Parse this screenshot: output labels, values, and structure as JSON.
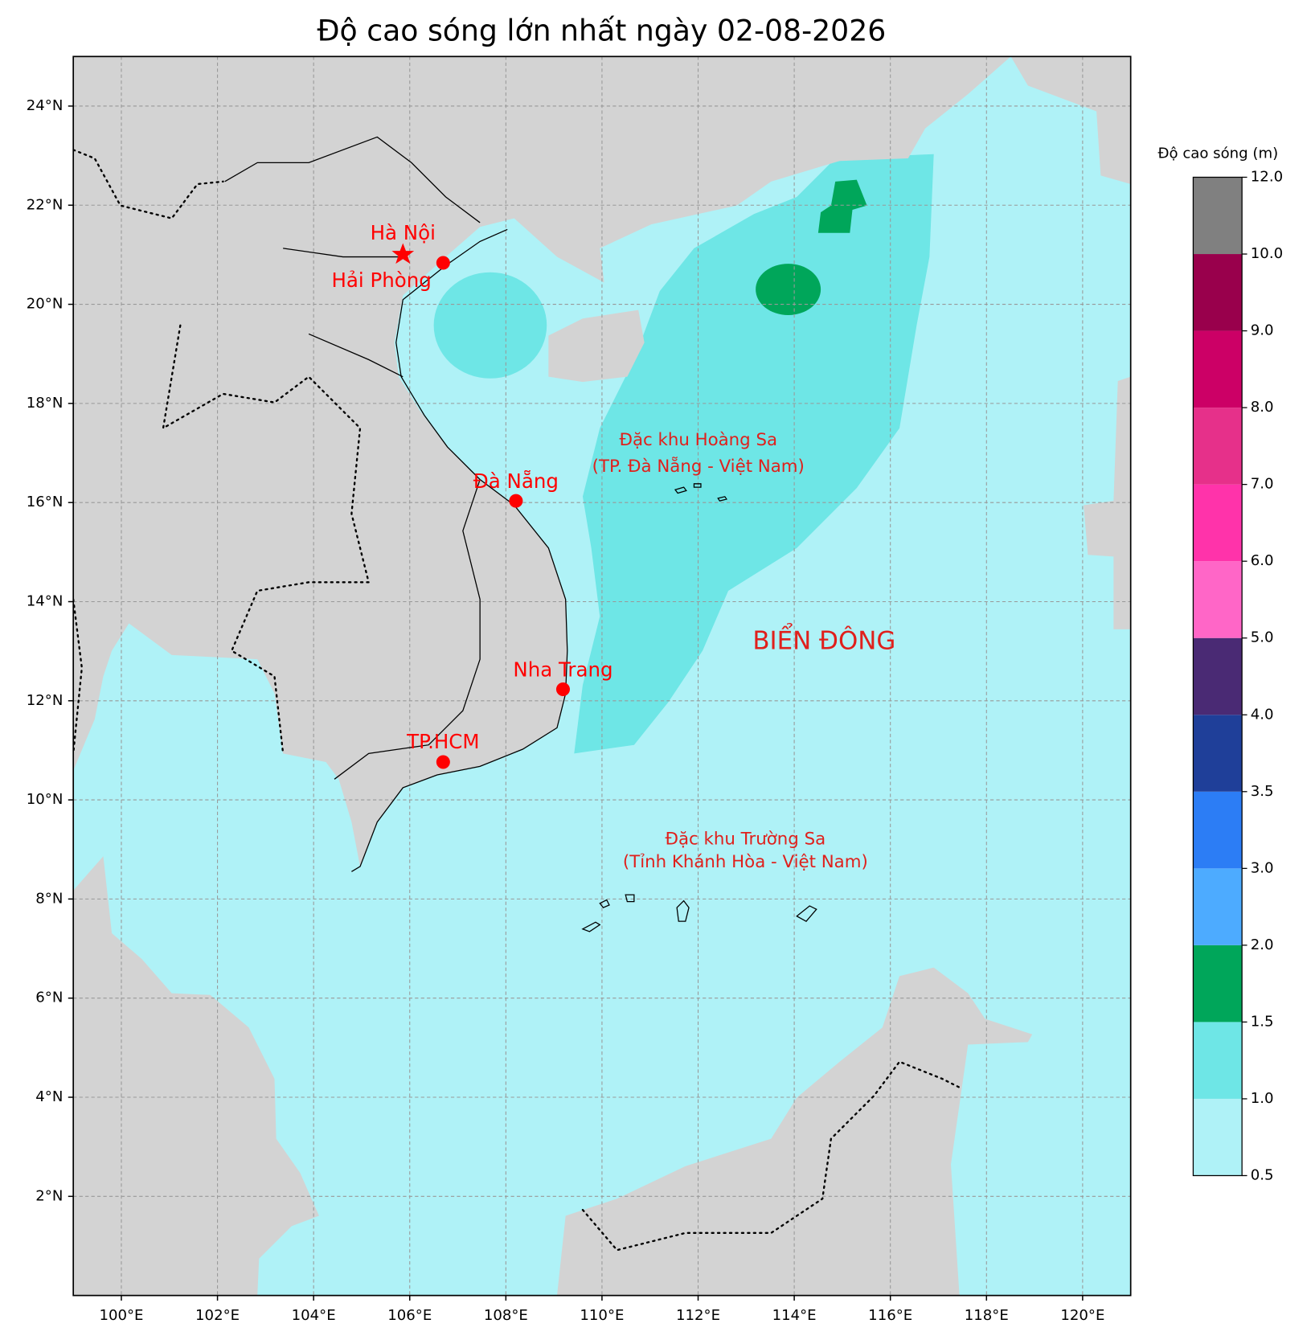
{
  "title": "Độ cao sóng lớn nhất ngày 02-08-2026",
  "map": {
    "xlim": [
      99,
      121
    ],
    "ylim": [
      0,
      25
    ],
    "xticks": [
      {
        "value": 100,
        "label": "100°E"
      },
      {
        "value": 102,
        "label": "102°E"
      },
      {
        "value": 104,
        "label": "104°E"
      },
      {
        "value": 106,
        "label": "106°E"
      },
      {
        "value": 108,
        "label": "108°E"
      },
      {
        "value": 110,
        "label": "110°E"
      },
      {
        "value": 112,
        "label": "112°E"
      },
      {
        "value": 114,
        "label": "114°E"
      },
      {
        "value": 116,
        "label": "116°E"
      },
      {
        "value": 118,
        "label": "118°E"
      },
      {
        "value": 120,
        "label": "120°E"
      }
    ],
    "yticks": [
      {
        "value": 2,
        "label": "2°N"
      },
      {
        "value": 4,
        "label": "4°N"
      },
      {
        "value": 6,
        "label": "6°N"
      },
      {
        "value": 8,
        "label": "8°N"
      },
      {
        "value": 10,
        "label": "10°N"
      },
      {
        "value": 12,
        "label": "12°N"
      },
      {
        "value": 14,
        "label": "14°N"
      },
      {
        "value": 16,
        "label": "16°N"
      },
      {
        "value": 18,
        "label": "18°N"
      },
      {
        "value": 20,
        "label": "20°N"
      },
      {
        "value": 22,
        "label": "22°N"
      },
      {
        "value": 24,
        "label": "24°N"
      }
    ],
    "grid": true
  },
  "colorbar": {
    "label": "Độ cao sóng (m)",
    "ticks": [
      {
        "value": 0.5,
        "label": "0.5"
      },
      {
        "value": 1,
        "label": "1.0"
      },
      {
        "value": 1.5,
        "label": "1.5"
      },
      {
        "value": 2,
        "label": "2.0"
      },
      {
        "value": 3,
        "label": "3.0"
      },
      {
        "value": 3.5,
        "label": "3.5"
      },
      {
        "value": 4,
        "label": "4.0"
      },
      {
        "value": 5,
        "label": "5.0"
      },
      {
        "value": 6,
        "label": "6.0"
      },
      {
        "value": 7,
        "label": "7.0"
      },
      {
        "value": 8,
        "label": "8.0"
      },
      {
        "value": 9,
        "label": "9.0"
      },
      {
        "value": 10,
        "label": "10.0"
      },
      {
        "value": 12,
        "label": "12.0"
      }
    ],
    "colors": [
      "#aff2f7",
      "#6ee6e6",
      "#00a65a",
      "#4dabff",
      "#2c7df5",
      "#1f3f99",
      "#4a2a74",
      "#ff66c7",
      "#ff33aa",
      "#e6308a",
      "#cc0066",
      "#99004c",
      "#808080"
    ]
  },
  "cities": [
    "Hà Nội",
    "Hải Phòng",
    "Đà Nẵng",
    "Nha Trang",
    "TP.HCM"
  ],
  "annotations": {
    "hoang_sa": [
      "Đặc khu Hoàng Sa",
      "(TP. Đà Nẵng - Việt Nam)"
    ],
    "bien_dong": "BIỂN ĐÔNG",
    "truong_sa": [
      "Đặc khu Trường Sa",
      "(Tỉnh Khánh Hòa - Việt Nam)"
    ]
  }
}
